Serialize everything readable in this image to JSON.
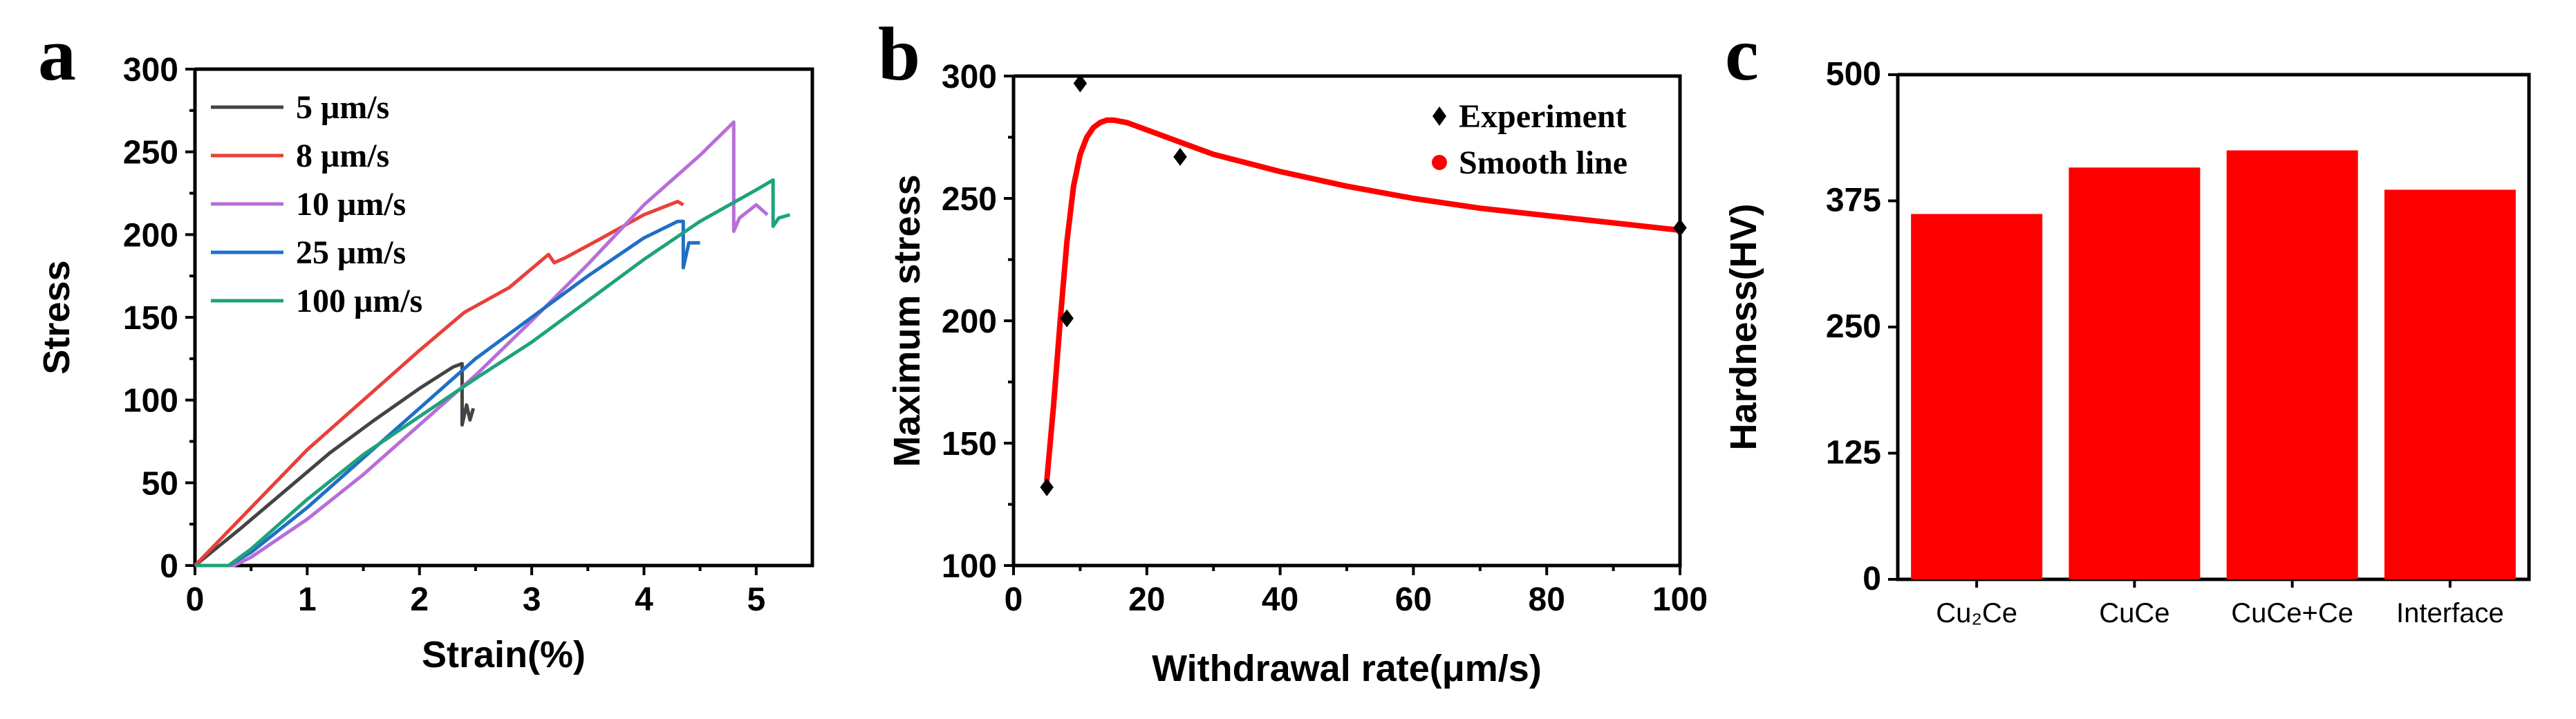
{
  "chart_data": [
    {
      "panel": "a",
      "type": "line",
      "title": "",
      "xlabel": "Strain(%)",
      "ylabel": "Stress",
      "xlim": [
        0,
        5.5
      ],
      "ylim": [
        0,
        300
      ],
      "xticks": [
        0,
        1,
        2,
        3,
        4,
        5
      ],
      "yticks": [
        0,
        50,
        100,
        150,
        200,
        250,
        300
      ],
      "legend_position": "top-left",
      "series": [
        {
          "name": "5 μm/s",
          "color": "#444444",
          "x": [
            0,
            0.4,
            0.8,
            1.2,
            1.6,
            2.0,
            2.3,
            2.38,
            2.38,
            2.42,
            2.45,
            2.48
          ],
          "y": [
            0,
            22,
            45,
            68,
            88,
            107,
            120,
            122,
            85,
            97,
            88,
            95
          ]
        },
        {
          "name": "8 μm/s",
          "color": "#e8403a",
          "x": [
            0,
            0.5,
            1.0,
            1.5,
            2.0,
            2.4,
            2.8,
            3.15,
            3.2,
            3.3,
            3.6,
            4.0,
            4.3,
            4.35
          ],
          "y": [
            0,
            35,
            70,
            100,
            130,
            153,
            168,
            188,
            183,
            186,
            197,
            212,
            220,
            218
          ]
        },
        {
          "name": "10 μm/s",
          "color": "#b86ed8",
          "x": [
            0,
            0.35,
            0.5,
            1.0,
            1.5,
            2.0,
            2.5,
            3.0,
            3.5,
            4.0,
            4.5,
            4.8,
            4.8,
            4.85,
            5.0,
            5.1
          ],
          "y": [
            0,
            0,
            5,
            28,
            55,
            85,
            115,
            148,
            182,
            218,
            248,
            268,
            202,
            210,
            218,
            212
          ]
        },
        {
          "name": "25 μm/s",
          "color": "#1f6fc6",
          "x": [
            0,
            0.3,
            0.5,
            1.0,
            1.5,
            2.0,
            2.5,
            3.0,
            3.5,
            4.0,
            4.3,
            4.35,
            4.35,
            4.4,
            4.5
          ],
          "y": [
            0,
            0,
            8,
            35,
            65,
            95,
            125,
            150,
            175,
            198,
            208,
            208,
            180,
            195,
            195
          ]
        },
        {
          "name": "100 μm/s",
          "color": "#1ea37c",
          "x": [
            0,
            0.3,
            0.5,
            1.0,
            1.5,
            2.0,
            2.5,
            3.0,
            3.5,
            4.0,
            4.5,
            5.0,
            5.15,
            5.15,
            5.2,
            5.3
          ],
          "y": [
            0,
            0,
            10,
            40,
            67,
            90,
            113,
            135,
            160,
            185,
            208,
            227,
            233,
            205,
            210,
            212
          ]
        }
      ]
    },
    {
      "panel": "b",
      "type": "scatter",
      "title": "",
      "xlabel": "Withdrawal rate(μm/s)",
      "ylabel": "Maximum stress",
      "xlim": [
        0,
        100
      ],
      "ylim": [
        100,
        300
      ],
      "xticks": [
        0,
        20,
        40,
        60,
        80,
        100
      ],
      "yticks": [
        100,
        150,
        200,
        250,
        300
      ],
      "legend_position": "top-right",
      "series": [
        {
          "name": "Experiment",
          "kind": "diamond",
          "color": "#000000",
          "x": [
            5,
            8,
            10,
            25,
            100
          ],
          "y": [
            132,
            201,
            297,
            267,
            238
          ]
        },
        {
          "name": "Smooth line",
          "kind": "line",
          "color": "#ff0000",
          "x": [
            5,
            6,
            7,
            8,
            9,
            10,
            11,
            12,
            13,
            14,
            15,
            17,
            20,
            25,
            30,
            40,
            50,
            60,
            70,
            80,
            90,
            100
          ],
          "y": [
            135,
            165,
            200,
            232,
            255,
            268,
            275,
            279,
            281,
            282,
            282,
            281,
            278,
            273,
            268,
            261,
            255,
            250,
            246,
            243,
            240,
            237
          ]
        }
      ]
    },
    {
      "panel": "c",
      "type": "bar",
      "title": "",
      "xlabel": "",
      "ylabel": "Hardness(HV)",
      "ylim": [
        0,
        500
      ],
      "yticks": [
        0,
        125,
        250,
        375,
        500
      ],
      "color": "#ff0000",
      "categories": [
        "Cu₂Ce",
        "CuCe",
        "CuCe+Ce",
        "Interface"
      ],
      "values": [
        362,
        408,
        425,
        386
      ]
    }
  ]
}
